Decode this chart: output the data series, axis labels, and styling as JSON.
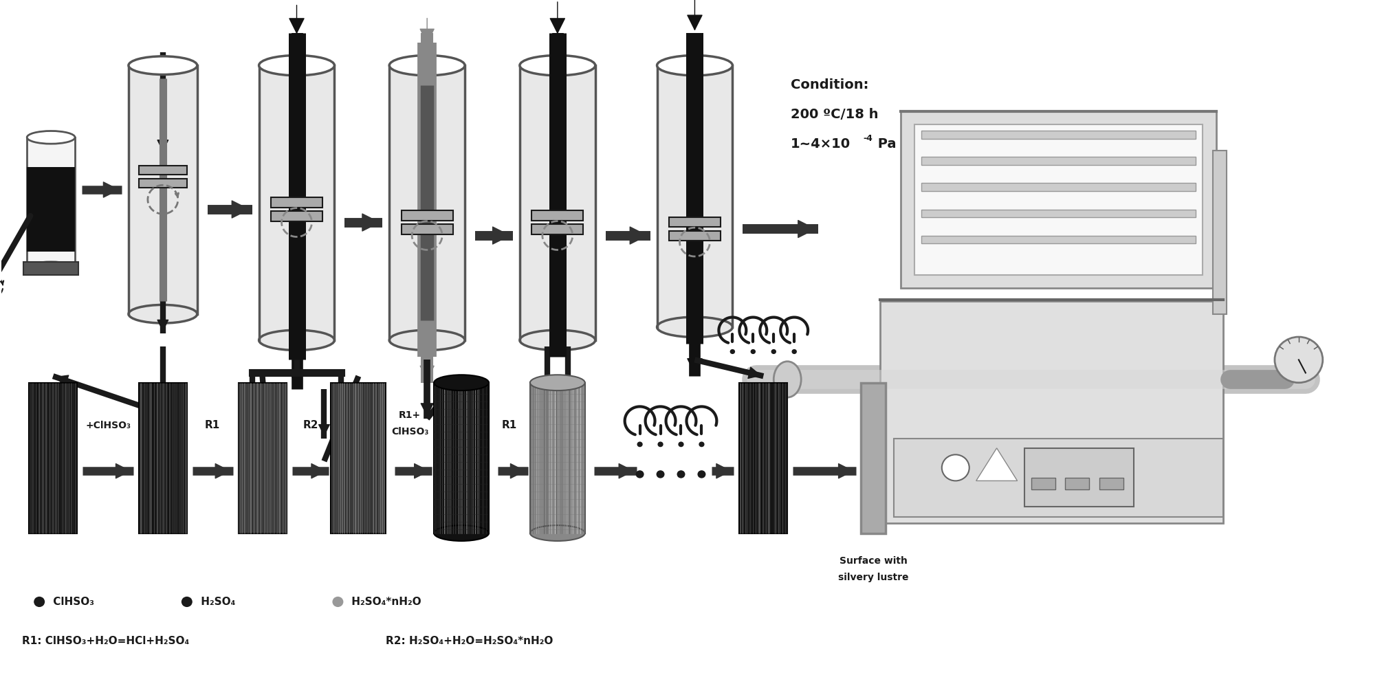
{
  "bg_color": "#ffffff",
  "fig_width": 20.26,
  "fig_height": 10.11,
  "dark": "#1a1a1a",
  "mid": "#555555",
  "lgray": "#aaaaaa",
  "dgray": "#333333",
  "tube_body": "#e8e8e8",
  "rod_black": "#111111",
  "rod_gray": "#666666",
  "condition_lines": [
    "Condition:",
    "200 ºC/18 h",
    "1~4×10⁻⁴ Pa"
  ],
  "legend_dots": [
    "#1a1a1a",
    "#1a1a1a",
    "#999999"
  ],
  "legend_labels": [
    "ClHSO₃",
    "H₂SO₄",
    "H₂SO₄*nH₂O"
  ],
  "eq1": "R1: ClHSO₃+H₂O=HCl+H₂SO₄",
  "eq2": "R2: H₂SO₄+H₂O=H₂SO₄*nH₂O",
  "surface_label": [
    "Surface with",
    "silvery lustre"
  ],
  "step_labels": [
    "+ClHSO₃",
    "R1",
    "R2",
    "R1+\nClHSO₃",
    "R1"
  ]
}
